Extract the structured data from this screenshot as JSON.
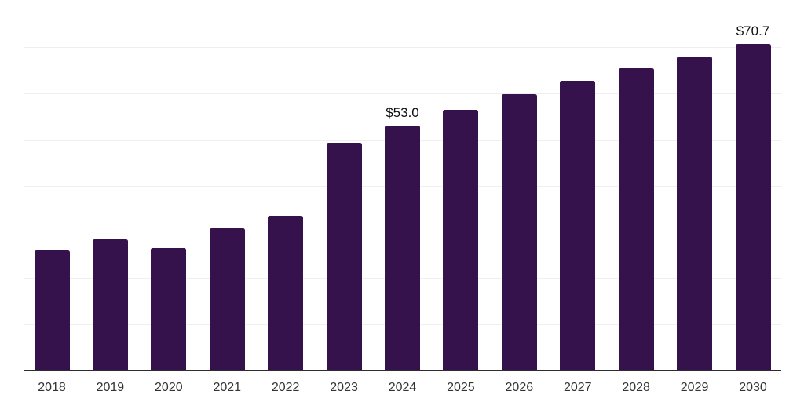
{
  "chart_data": {
    "type": "bar",
    "title": "",
    "xlabel": "",
    "ylabel": "",
    "categories": [
      "2018",
      "2019",
      "2020",
      "2021",
      "2022",
      "2023",
      "2024",
      "2025",
      "2026",
      "2027",
      "2028",
      "2029",
      "2030"
    ],
    "values": [
      25.9,
      28.4,
      26.4,
      30.7,
      33.4,
      49.3,
      53.0,
      56.4,
      59.8,
      62.7,
      65.5,
      68.0,
      70.7
    ],
    "bar_labels": [
      "",
      "",
      "",
      "",
      "",
      "",
      "$53.0",
      "",
      "",
      "",
      "",
      "",
      "$70.7"
    ],
    "ylim": [
      0,
      80
    ],
    "gridline_step": 10,
    "y_axis_labels_visible": false,
    "legend": "none",
    "grid": "horizontal-only",
    "colors": {
      "bar": "#35124B",
      "gridline": "#EFEFEF",
      "axis_line": "#2E2E2E",
      "tick_label": "#333333",
      "value_label": "#0D0D0D",
      "background": "#FFFFFF"
    }
  }
}
